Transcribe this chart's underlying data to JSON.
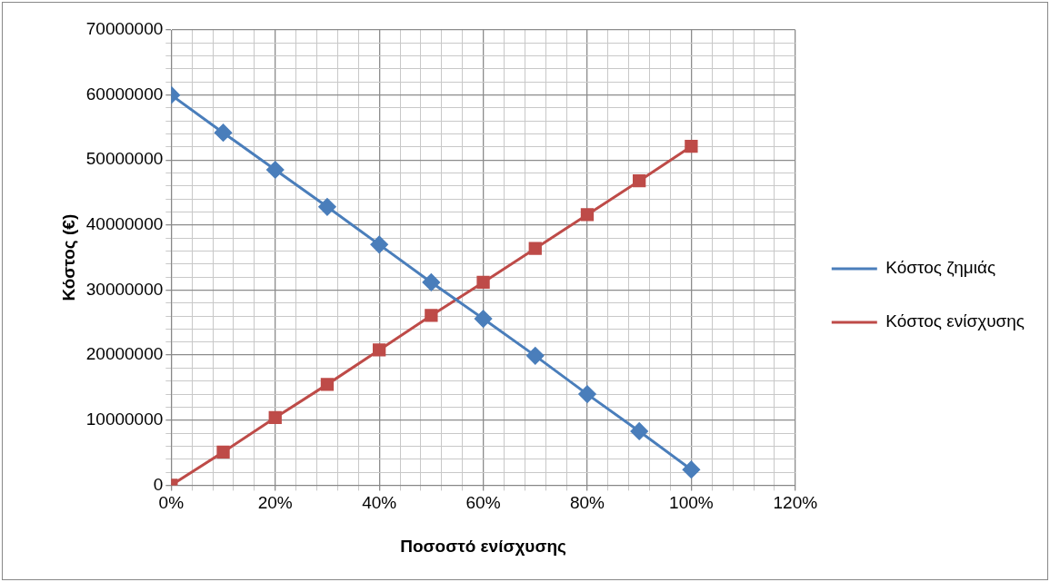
{
  "chart_data": {
    "type": "line",
    "xlabel": "Ποσοστό ενίσχυσης",
    "ylabel": "Κόστος (€)",
    "x": [
      0,
      10,
      20,
      30,
      40,
      50,
      60,
      70,
      80,
      90,
      100
    ],
    "series": [
      {
        "name": "Κόστος ζημιάς",
        "color": "#4a7ebb",
        "marker": "diamond",
        "values": [
          60000000,
          54200000,
          48500000,
          42800000,
          37000000,
          31200000,
          25600000,
          19900000,
          14000000,
          8300000,
          2400000
        ]
      },
      {
        "name": "Κόστος ενίσχυσης",
        "color": "#be4b48",
        "marker": "square",
        "values": [
          0,
          5100000,
          10400000,
          15500000,
          20800000,
          26100000,
          31200000,
          36400000,
          41600000,
          46800000,
          52100000
        ]
      }
    ],
    "xlim": [
      0,
      120
    ],
    "xticks": [
      {
        "value": 0,
        "label": "0%"
      },
      {
        "value": 4,
        "label": null
      },
      {
        "value": 8,
        "label": null
      },
      {
        "value": 12,
        "label": null
      },
      {
        "value": 16,
        "label": null
      },
      {
        "value": 20,
        "label": "20%"
      },
      {
        "value": 24,
        "label": null
      },
      {
        "value": 28,
        "label": null
      },
      {
        "value": 32,
        "label": null
      },
      {
        "value": 36,
        "label": null
      },
      {
        "value": 40,
        "label": "40%"
      },
      {
        "value": 44,
        "label": null
      },
      {
        "value": 48,
        "label": null
      },
      {
        "value": 52,
        "label": null
      },
      {
        "value": 56,
        "label": null
      },
      {
        "value": 60,
        "label": "60%"
      },
      {
        "value": 64,
        "label": null
      },
      {
        "value": 68,
        "label": null
      },
      {
        "value": 72,
        "label": null
      },
      {
        "value": 76,
        "label": null
      },
      {
        "value": 80,
        "label": "80%"
      },
      {
        "value": 84,
        "label": null
      },
      {
        "value": 88,
        "label": null
      },
      {
        "value": 92,
        "label": null
      },
      {
        "value": 96,
        "label": null
      },
      {
        "value": 100,
        "label": "100%"
      },
      {
        "value": 104,
        "label": null
      },
      {
        "value": 108,
        "label": null
      },
      {
        "value": 112,
        "label": null
      },
      {
        "value": 116,
        "label": null
      },
      {
        "value": 120,
        "label": "120%"
      }
    ],
    "ylim": [
      0,
      70000000
    ],
    "yticks": [
      0,
      {
        "value": 2000000,
        "label": null
      },
      {
        "value": 4000000,
        "label": null
      },
      {
        "value": 6000000,
        "label": null
      },
      {
        "value": 8000000,
        "label": null
      },
      10000000,
      {
        "value": 12000000,
        "label": null
      },
      {
        "value": 14000000,
        "label": null
      },
      {
        "value": 16000000,
        "label": null
      },
      {
        "value": 18000000,
        "label": null
      },
      20000000,
      {
        "value": 22000000,
        "label": null
      },
      {
        "value": 24000000,
        "label": null
      },
      {
        "value": 26000000,
        "label": null
      },
      {
        "value": 28000000,
        "label": null
      },
      30000000,
      {
        "value": 32000000,
        "label": null
      },
      {
        "value": 34000000,
        "label": null
      },
      {
        "value": 36000000,
        "label": null
      },
      {
        "value": 38000000,
        "label": null
      },
      40000000,
      {
        "value": 42000000,
        "label": null
      },
      {
        "value": 44000000,
        "label": null
      },
      {
        "value": 46000000,
        "label": null
      },
      {
        "value": 48000000,
        "label": null
      },
      50000000,
      {
        "value": 52000000,
        "label": null
      },
      {
        "value": 54000000,
        "label": null
      },
      {
        "value": 56000000,
        "label": null
      },
      {
        "value": 58000000,
        "label": null
      },
      60000000,
      {
        "value": 62000000,
        "label": null
      },
      {
        "value": 64000000,
        "label": null
      },
      {
        "value": 66000000,
        "label": null
      },
      {
        "value": 68000000,
        "label": null
      },
      70000000
    ],
    "grid": true,
    "legend": "right",
    "line_style": "solid"
  }
}
